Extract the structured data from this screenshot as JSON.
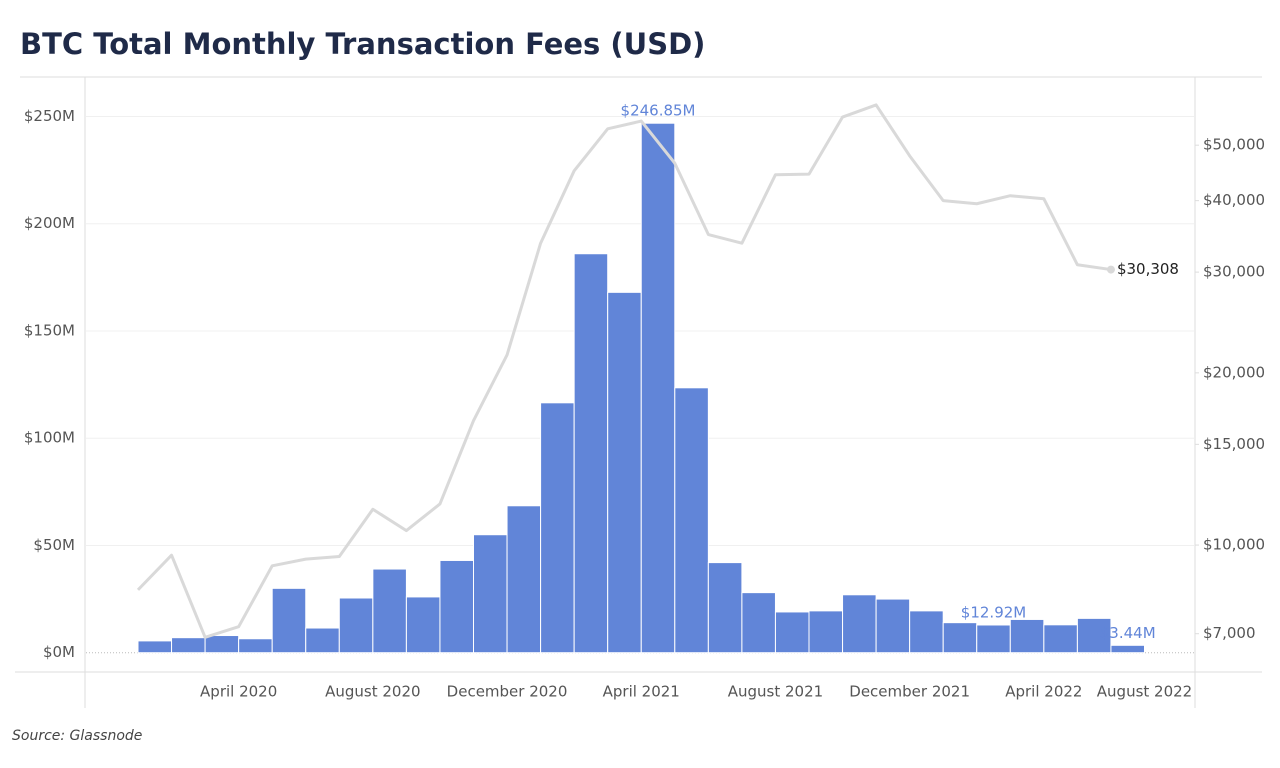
{
  "chart_data": {
    "type": "bar",
    "title": "BTC Total Monthly Transaction Fees (USD)",
    "source": "Source: Glassnode",
    "categories": [
      null,
      null,
      null,
      "April 2020",
      null,
      null,
      null,
      "August 2020",
      null,
      null,
      null,
      "December 2020",
      null,
      null,
      null,
      "April 2021",
      null,
      null,
      null,
      "August 2021",
      null,
      null,
      null,
      "December 2021",
      null,
      null,
      null,
      "April 2022",
      null,
      null,
      "August 2022"
    ],
    "series": [
      {
        "type": "bar",
        "color": "#6185d8",
        "values": [
          5.5,
          7,
          8,
          6.5,
          30,
          11.5,
          25.5,
          39,
          26,
          43,
          55,
          68.5,
          116.5,
          186,
          168,
          246.85,
          123.5,
          42,
          28,
          19,
          19.5,
          27,
          25,
          19.5,
          14,
          12.92,
          15.5,
          13,
          16,
          3.44,
          null
        ],
        "value_labels": [
          null,
          null,
          null,
          null,
          null,
          null,
          null,
          null,
          null,
          null,
          null,
          null,
          null,
          null,
          null,
          "$246.85M",
          null,
          null,
          null,
          null,
          null,
          null,
          null,
          null,
          null,
          "$12.92M",
          null,
          null,
          null,
          "$3.44M",
          null
        ]
      },
      {
        "type": "line",
        "axis": "y2",
        "color": "#d9d9d9",
        "values": [
          8350,
          9600,
          6900,
          7200,
          9200,
          9450,
          9550,
          11550,
          10600,
          11800,
          16500,
          21500,
          33700,
          45100,
          53400,
          55100,
          46500,
          34900,
          33700,
          44400,
          44500,
          56000,
          58800,
          47900,
          40000,
          39500,
          40800,
          40300,
          30900,
          30308,
          null
        ],
        "value_labels": [
          null,
          null,
          null,
          null,
          null,
          null,
          null,
          null,
          null,
          null,
          null,
          null,
          null,
          null,
          null,
          null,
          null,
          null,
          null,
          null,
          null,
          null,
          null,
          null,
          null,
          null,
          null,
          null,
          null,
          "$30,308",
          null
        ]
      }
    ],
    "ylim": [
      -9,
      267
    ],
    "yticks": [
      {
        "value": 0,
        "label": "$0M"
      },
      {
        "value": 50,
        "label": "$50M"
      },
      {
        "value": 100,
        "label": "$100M"
      },
      {
        "value": 150,
        "label": "$150M"
      },
      {
        "value": 200,
        "label": "$200M"
      },
      {
        "value": 250,
        "label": "$250M"
      }
    ],
    "y2lim": [
      6000,
      65000
    ],
    "y2_scale": "log",
    "y2ticks": [
      {
        "value": 7000,
        "label": "$7,000"
      },
      {
        "value": 10000,
        "label": "$10,000"
      },
      {
        "value": 15000,
        "label": "$15,000"
      },
      {
        "value": 20000,
        "label": "$20,000"
      },
      {
        "value": 30000,
        "label": "$30,000"
      },
      {
        "value": 40000,
        "label": "$40,000"
      },
      {
        "value": 50000,
        "label": "$50,000"
      }
    ],
    "grid": true
  }
}
